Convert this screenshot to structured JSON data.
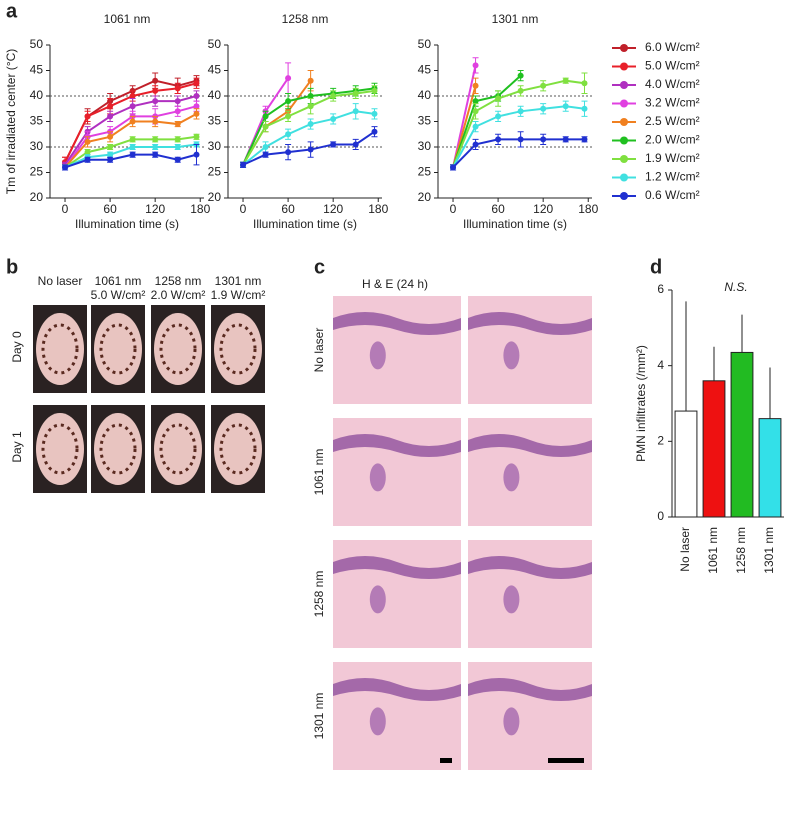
{
  "panel_labels": [
    "a",
    "b",
    "c",
    "d"
  ],
  "chart_data": [
    {
      "type": "line",
      "title": "1061 nm",
      "xlabel": "Illumination time (s)",
      "ylabel": "Tm of irradiated center (°C)",
      "x": [
        0,
        30,
        60,
        90,
        120,
        150,
        175
      ],
      "xlim": [
        -20,
        185
      ],
      "xticks": [
        0,
        60,
        120,
        180
      ],
      "ylim": [
        20,
        50
      ],
      "yticks": [
        20,
        25,
        30,
        35,
        40,
        45,
        50
      ],
      "hlines": [
        30,
        40
      ],
      "series": [
        {
          "color": "#c0202a",
          "values": [
            27,
            36,
            39,
            41,
            43,
            42,
            43
          ],
          "errors": [
            1,
            1.5,
            1.5,
            1,
            1.5,
            1.5,
            1
          ]
        },
        {
          "color": "#e8202a",
          "values": [
            27,
            36,
            38,
            40,
            41,
            41.5,
            42.5
          ],
          "errors": [
            1,
            1,
            1.5,
            1,
            1,
            1,
            1
          ]
        },
        {
          "color": "#b030c0",
          "values": [
            26.5,
            33,
            36,
            38,
            39,
            39,
            40
          ],
          "errors": [
            0.5,
            1,
            1,
            1.5,
            1,
            1,
            1
          ]
        },
        {
          "color": "#e040e0",
          "values": [
            26,
            32,
            33,
            36,
            36,
            37,
            38
          ],
          "errors": [
            0.5,
            1,
            1,
            1,
            1.5,
            1,
            1
          ]
        },
        {
          "color": "#f08020",
          "values": [
            26,
            31,
            32,
            35,
            35,
            34.5,
            36.5
          ],
          "errors": [
            0.5,
            1,
            1,
            1,
            1,
            0.5,
            1
          ]
        },
        {
          "color": "#80e040",
          "values": [
            26,
            29,
            30,
            31.5,
            31.5,
            31.5,
            32
          ],
          "errors": [
            0.5,
            0.5,
            0.5,
            0.5,
            0.5,
            0.5,
            0.5
          ]
        },
        {
          "color": "#40e0e0",
          "values": [
            26,
            28,
            28.5,
            30,
            30,
            30,
            30.5
          ],
          "errors": [
            0.5,
            0.5,
            0.5,
            0.5,
            0.5,
            0.5,
            0.5
          ]
        },
        {
          "color": "#2030d0",
          "values": [
            26,
            27.5,
            27.5,
            28.5,
            28.5,
            27.5,
            28.5
          ],
          "errors": [
            0.5,
            0.5,
            0.5,
            0.5,
            0.5,
            0.5,
            2
          ]
        }
      ]
    },
    {
      "type": "line",
      "title": "1258 nm",
      "xlabel": "Illumination time (s)",
      "x": [
        0,
        30,
        60,
        90,
        120,
        150,
        175
      ],
      "xlim": [
        -20,
        185
      ],
      "xticks": [
        0,
        60,
        120,
        180
      ],
      "ylim": [
        20,
        50
      ],
      "yticks": [
        20,
        25,
        30,
        35,
        40,
        45,
        50
      ],
      "hlines": [
        30,
        40
      ],
      "series": [
        {
          "color": "#e040e0",
          "values": [
            26.5,
            37,
            43.5,
            null,
            null,
            null,
            null
          ],
          "errors": [
            0.5,
            1,
            3,
            null,
            null,
            null,
            null
          ]
        },
        {
          "color": "#f08020",
          "values": [
            26.5,
            34,
            37,
            43,
            null,
            null,
            null
          ],
          "errors": [
            0.5,
            1,
            1,
            2,
            null,
            null,
            null
          ]
        },
        {
          "color": "#20c020",
          "values": [
            26.5,
            36,
            39,
            40,
            40.5,
            41,
            41.5
          ],
          "errors": [
            0.5,
            1,
            1.5,
            1.5,
            1,
            1,
            1
          ]
        },
        {
          "color": "#80e040",
          "values": [
            26.5,
            34,
            36,
            38,
            40,
            40.5,
            41
          ],
          "errors": [
            0.5,
            1,
            1,
            1.5,
            1,
            1,
            1
          ]
        },
        {
          "color": "#40e0e0",
          "values": [
            26.5,
            30,
            32.5,
            34.5,
            35.5,
            37,
            36.5
          ],
          "errors": [
            0.5,
            1,
            1,
            1,
            1,
            1.5,
            1
          ]
        },
        {
          "color": "#2030d0",
          "values": [
            26.5,
            28.5,
            29,
            29.5,
            30.5,
            30.5,
            33
          ],
          "errors": [
            0.5,
            0.5,
            1.5,
            1.5,
            0.5,
            1,
            1
          ]
        }
      ]
    },
    {
      "type": "line",
      "title": "1301 nm",
      "xlabel": "Illumination time (s)",
      "x": [
        0,
        30,
        60,
        90,
        120,
        150,
        175
      ],
      "xlim": [
        -20,
        185
      ],
      "xticks": [
        0,
        60,
        120,
        180
      ],
      "ylim": [
        20,
        50
      ],
      "yticks": [
        20,
        25,
        30,
        35,
        40,
        45,
        50
      ],
      "hlines": [
        30,
        40
      ],
      "series": [
        {
          "color": "#e040e0",
          "values": [
            26,
            46,
            null,
            null,
            null,
            null,
            null
          ],
          "errors": [
            0.5,
            1.5,
            null,
            null,
            null,
            null,
            null
          ]
        },
        {
          "color": "#f08020",
          "values": [
            26,
            42,
            null,
            null,
            null,
            null,
            null
          ],
          "errors": [
            0.5,
            1.5,
            null,
            null,
            null,
            null,
            null
          ]
        },
        {
          "color": "#20c020",
          "values": [
            26,
            39,
            40,
            44,
            null,
            null,
            null
          ],
          "errors": [
            0.5,
            1,
            1,
            1,
            null,
            null,
            null
          ]
        },
        {
          "color": "#80e040",
          "values": [
            26,
            37,
            39.5,
            41,
            42,
            43,
            42.5
          ],
          "errors": [
            0.5,
            1.5,
            1.5,
            1,
            1,
            0.5,
            2
          ]
        },
        {
          "color": "#40e0e0",
          "values": [
            26,
            34,
            36,
            37,
            37.5,
            38,
            37.5
          ],
          "errors": [
            0.5,
            1,
            1,
            1,
            1,
            1,
            1.5
          ]
        },
        {
          "color": "#2030d0",
          "values": [
            26,
            30.5,
            31.5,
            31.5,
            31.5,
            31.5,
            31.5
          ],
          "errors": [
            0.5,
            1,
            1,
            1.5,
            1,
            0.5,
            0.5
          ]
        }
      ]
    },
    {
      "type": "bar",
      "title": "N.S.",
      "ylabel": "PMN infiltrates (/mm²)",
      "categories": [
        "No laser",
        "1061 nm",
        "1258 nm",
        "1301 nm"
      ],
      "values": [
        2.8,
        3.6,
        4.35,
        2.6
      ],
      "errors": [
        2.9,
        0.9,
        1.0,
        1.35
      ],
      "colors": [
        "#ffffff",
        "#ee1111",
        "#22bb22",
        "#33e0e8"
      ],
      "ylim": [
        0,
        6
      ],
      "yticks": [
        0,
        2,
        4,
        6
      ]
    }
  ],
  "legend": [
    {
      "name": "6.0 W/cm²",
      "color": "#c0202a"
    },
    {
      "name": "5.0 W/cm²",
      "color": "#e8202a"
    },
    {
      "name": "4.0 W/cm²",
      "color": "#b030c0"
    },
    {
      "name": "3.2 W/cm²",
      "color": "#e040e0"
    },
    {
      "name": "2.5 W/cm²",
      "color": "#f08020"
    },
    {
      "name": "2.0 W/cm²",
      "color": "#20c020"
    },
    {
      "name": "1.9 W/cm²",
      "color": "#80e040"
    },
    {
      "name": "1.2 W/cm²",
      "color": "#40e0e0"
    },
    {
      "name": "0.6 W/cm²",
      "color": "#2030d0"
    }
  ],
  "photos": {
    "columns": [
      [
        "No laser"
      ],
      [
        "1061 nm",
        "5.0 W/cm²"
      ],
      [
        "1258 nm",
        "2.0 W/cm²"
      ],
      [
        "1301 nm",
        "1.9 W/cm²"
      ]
    ],
    "rows": [
      "Day 0",
      "Day 1"
    ]
  },
  "histology": {
    "title": "H & E (24 h)",
    "rows": [
      "No laser",
      "1061 nm",
      "1258 nm",
      "1301 nm"
    ]
  }
}
